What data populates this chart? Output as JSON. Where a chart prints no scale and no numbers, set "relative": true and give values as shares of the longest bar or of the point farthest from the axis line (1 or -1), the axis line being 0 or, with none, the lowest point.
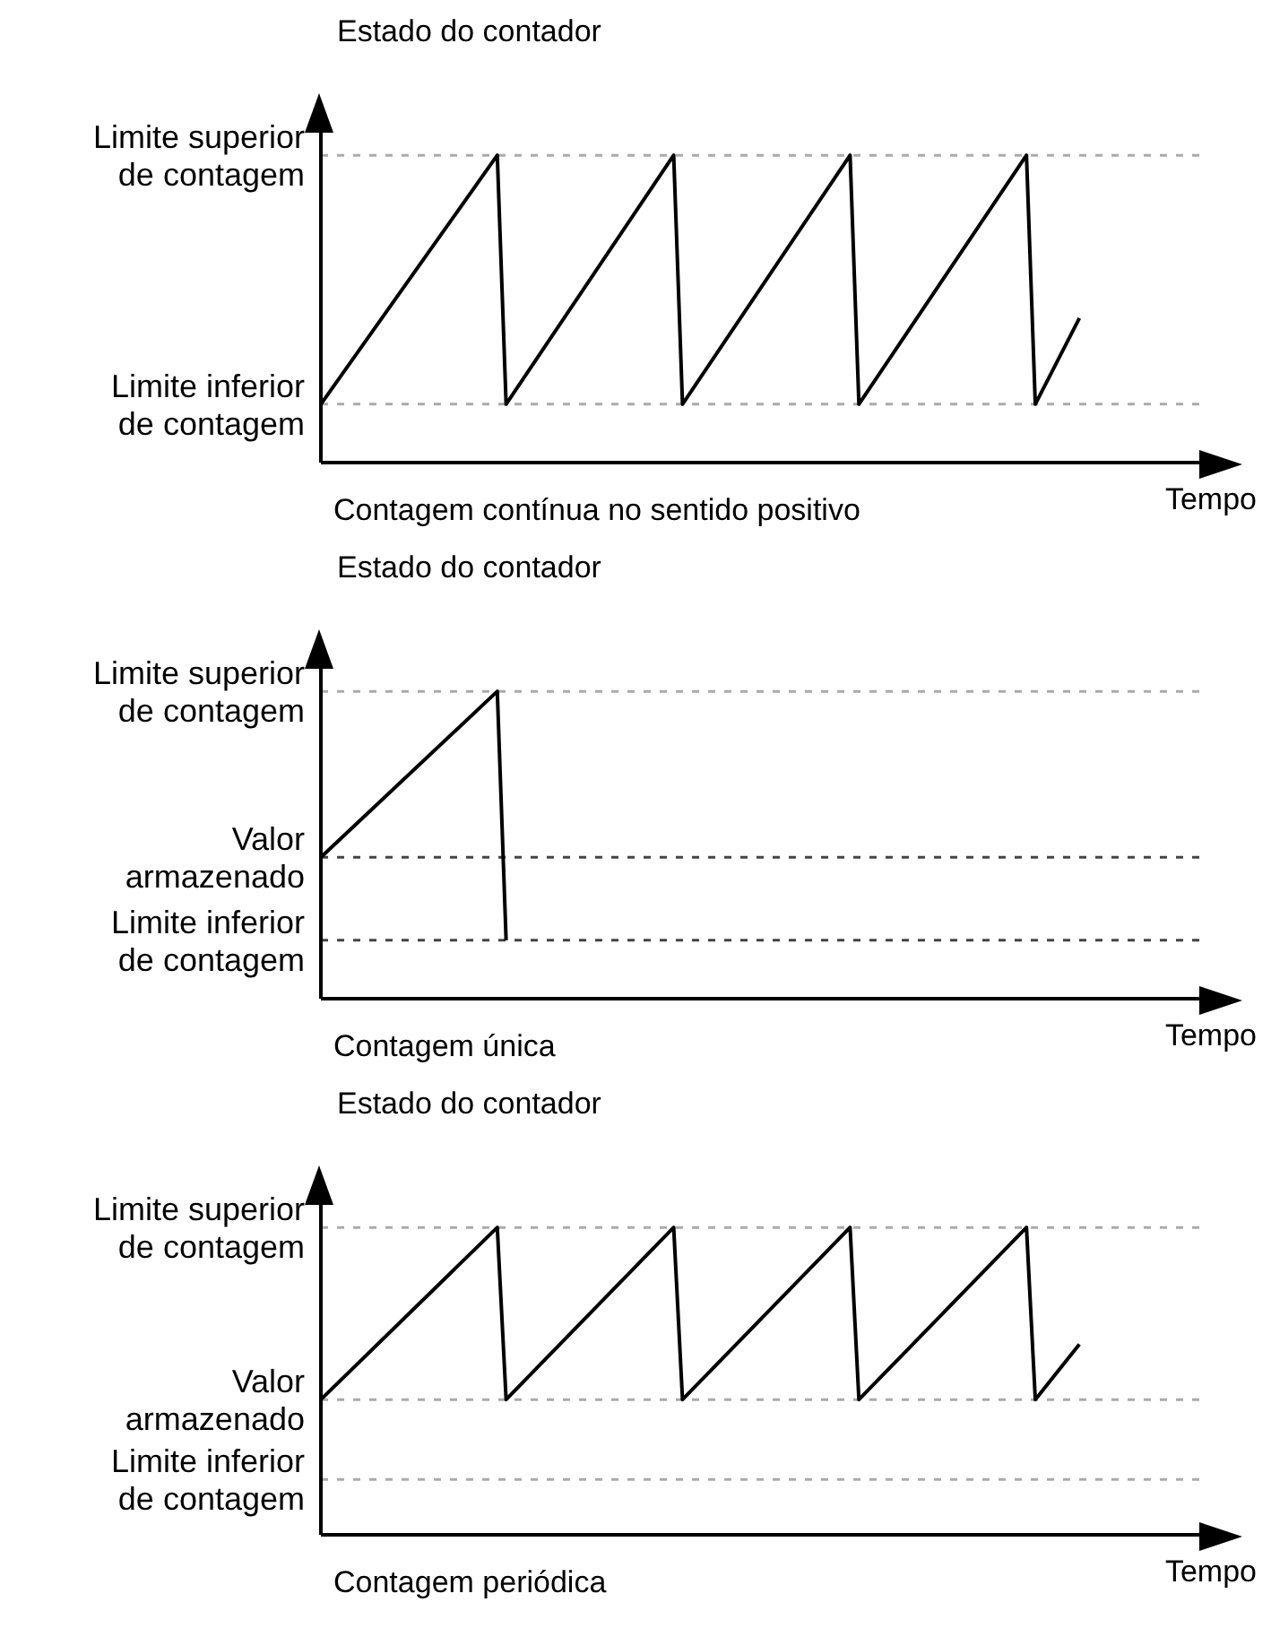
{
  "chart_data": [
    {
      "type": "line",
      "relative": true,
      "ylabel": "Estado do contador",
      "xlabel": "Tempo",
      "annotations": [
        "Contagem contínua no sentido positivo"
      ],
      "grid": false,
      "marker": "none",
      "line_style": "solid",
      "categories": [
        null,
        null,
        null,
        null,
        null,
        null,
        null,
        null,
        null,
        null,
        null,
        null,
        null,
        null,
        null,
        null,
        null,
        null,
        null,
        null,
        null,
        null,
        null,
        null,
        null,
        null,
        null,
        null,
        null,
        null,
        null,
        null,
        null,
        null,
        null,
        null,
        null,
        null,
        null,
        null,
        null,
        null,
        null,
        null,
        null,
        null,
        null,
        null,
        null,
        null,
        null,
        null,
        null,
        null,
        null,
        null,
        null,
        null,
        null,
        null,
        null,
        null,
        null,
        null,
        null,
        null,
        null,
        null,
        null,
        null,
        null,
        null,
        null,
        null,
        null,
        null,
        null,
        null,
        null,
        null,
        null,
        null,
        null,
        null,
        null,
        null,
        null,
        null,
        null,
        null,
        null,
        null,
        null,
        null,
        null,
        null,
        null,
        null,
        null,
        null,
        null
      ],
      "series": [
        {
          "color": "#000000",
          "values": [
            0.19,
            null,
            null,
            null,
            null,
            null,
            null,
            null,
            null,
            null,
            null,
            null,
            null,
            null,
            null,
            null,
            null,
            null,
            null,
            null,
            1,
            0.19,
            null,
            null,
            null,
            null,
            null,
            null,
            null,
            null,
            null,
            null,
            null,
            null,
            null,
            null,
            null,
            null,
            null,
            null,
            1,
            0.19,
            null,
            null,
            null,
            null,
            null,
            null,
            null,
            null,
            null,
            null,
            null,
            null,
            null,
            null,
            null,
            null,
            null,
            null,
            1,
            0.19,
            null,
            null,
            null,
            null,
            null,
            null,
            null,
            null,
            null,
            null,
            null,
            null,
            null,
            null,
            null,
            null,
            null,
            null,
            1,
            0.19,
            null,
            null,
            null,
            null,
            0.47,
            null,
            null,
            null,
            null,
            null,
            null,
            null,
            null,
            null,
            null,
            null,
            null,
            null,
            null
          ]
        }
      ],
      "ref_lines": [
        {
          "axis": "y",
          "value": 1,
          "label": "Limite superior\nde contagem",
          "color": "#aaaaaa",
          "line_style": "dashed"
        },
        {
          "axis": "y",
          "value": 0.19,
          "label": "Limite inferior\nde contagem",
          "color": "#aaaaaa",
          "line_style": "dashed"
        }
      ]
    },
    {
      "type": "line",
      "relative": true,
      "ylabel": "Estado do contador",
      "xlabel": "Tempo",
      "annotations": [
        "Contagem única"
      ],
      "grid": false,
      "marker": "none",
      "line_style": "solid",
      "categories": [
        null,
        null,
        null,
        null,
        null,
        null,
        null,
        null,
        null,
        null,
        null,
        null,
        null,
        null,
        null,
        null,
        null,
        null,
        null,
        null,
        null,
        null,
        null,
        null,
        null,
        null,
        null,
        null,
        null,
        null,
        null,
        null,
        null,
        null,
        null,
        null,
        null,
        null,
        null,
        null,
        null,
        null,
        null,
        null,
        null,
        null,
        null,
        null,
        null,
        null,
        null,
        null,
        null,
        null,
        null,
        null,
        null,
        null,
        null,
        null,
        null,
        null,
        null,
        null,
        null,
        null,
        null,
        null,
        null,
        null,
        null,
        null,
        null,
        null,
        null,
        null,
        null,
        null,
        null,
        null,
        null,
        null,
        null,
        null,
        null,
        null,
        null,
        null,
        null,
        null,
        null,
        null,
        null,
        null,
        null,
        null,
        null,
        null,
        null,
        null,
        null
      ],
      "series": [
        {
          "color": "#000000",
          "values": [
            0.46,
            null,
            null,
            null,
            null,
            null,
            null,
            null,
            null,
            null,
            null,
            null,
            null,
            null,
            null,
            null,
            null,
            null,
            null,
            null,
            1,
            0.19,
            null,
            null,
            null,
            null,
            null,
            null,
            null,
            null,
            null,
            null,
            null,
            null,
            null,
            null,
            null,
            null,
            null,
            null,
            null,
            null,
            null,
            null,
            null,
            null,
            null,
            null,
            null,
            null,
            null,
            null,
            null,
            null,
            null,
            null,
            null,
            null,
            null,
            null,
            null,
            null,
            null,
            null,
            null,
            null,
            null,
            null,
            null,
            null,
            null,
            null,
            null,
            null,
            null,
            null,
            null,
            null,
            null,
            null,
            null,
            null,
            null,
            null,
            null,
            null,
            null,
            null,
            null,
            null,
            null,
            null,
            null,
            null,
            null,
            null,
            null,
            null,
            null,
            null,
            null
          ]
        }
      ],
      "ref_lines": [
        {
          "axis": "y",
          "value": 1,
          "label": "Limite superior\nde contagem",
          "color": "#aaaaaa",
          "line_style": "dashed"
        },
        {
          "axis": "y",
          "value": 0.46,
          "label": "Valor\narmazenado",
          "color": "#444444",
          "line_style": "dashed"
        },
        {
          "axis": "y",
          "value": 0.19,
          "label": "Limite inferior\nde contagem",
          "color": "#444444",
          "line_style": "dashed"
        }
      ]
    },
    {
      "type": "line",
      "relative": true,
      "ylabel": "Estado do contador",
      "xlabel": "Tempo",
      "annotations": [
        "Contagem periódica"
      ],
      "grid": false,
      "marker": "none",
      "line_style": "solid",
      "categories": [
        null,
        null,
        null,
        null,
        null,
        null,
        null,
        null,
        null,
        null,
        null,
        null,
        null,
        null,
        null,
        null,
        null,
        null,
        null,
        null,
        null,
        null,
        null,
        null,
        null,
        null,
        null,
        null,
        null,
        null,
        null,
        null,
        null,
        null,
        null,
        null,
        null,
        null,
        null,
        null,
        null,
        null,
        null,
        null,
        null,
        null,
        null,
        null,
        null,
        null,
        null,
        null,
        null,
        null,
        null,
        null,
        null,
        null,
        null,
        null,
        null,
        null,
        null,
        null,
        null,
        null,
        null,
        null,
        null,
        null,
        null,
        null,
        null,
        null,
        null,
        null,
        null,
        null,
        null,
        null,
        null,
        null,
        null,
        null,
        null,
        null,
        null,
        null,
        null,
        null,
        null,
        null,
        null,
        null,
        null,
        null,
        null,
        null,
        null,
        null,
        null
      ],
      "series": [
        {
          "color": "#000000",
          "values": [
            0.44,
            null,
            null,
            null,
            null,
            null,
            null,
            null,
            null,
            null,
            null,
            null,
            null,
            null,
            null,
            null,
            null,
            null,
            null,
            null,
            1,
            0.44,
            null,
            null,
            null,
            null,
            null,
            null,
            null,
            null,
            null,
            null,
            null,
            null,
            null,
            null,
            null,
            null,
            null,
            null,
            1,
            0.44,
            null,
            null,
            null,
            null,
            null,
            null,
            null,
            null,
            null,
            null,
            null,
            null,
            null,
            null,
            null,
            null,
            null,
            null,
            1,
            0.44,
            null,
            null,
            null,
            null,
            null,
            null,
            null,
            null,
            null,
            null,
            null,
            null,
            null,
            null,
            null,
            null,
            null,
            null,
            1,
            0.44,
            null,
            null,
            null,
            null,
            0.62,
            null,
            null,
            null,
            null,
            null,
            null,
            null,
            null,
            null,
            null,
            null,
            null,
            null,
            null
          ]
        }
      ],
      "ref_lines": [
        {
          "axis": "y",
          "value": 1,
          "label": "Limite superior\nde contagem",
          "color": "#aaaaaa",
          "line_style": "dashed"
        },
        {
          "axis": "y",
          "value": 0.44,
          "label": "Valor\narmazenado",
          "color": "#aaaaaa",
          "line_style": "dashed"
        },
        {
          "axis": "y",
          "value": 0.18,
          "label": "Limite inferior\nde contagem",
          "color": "#aaaaaa",
          "line_style": "dashed"
        }
      ]
    }
  ]
}
